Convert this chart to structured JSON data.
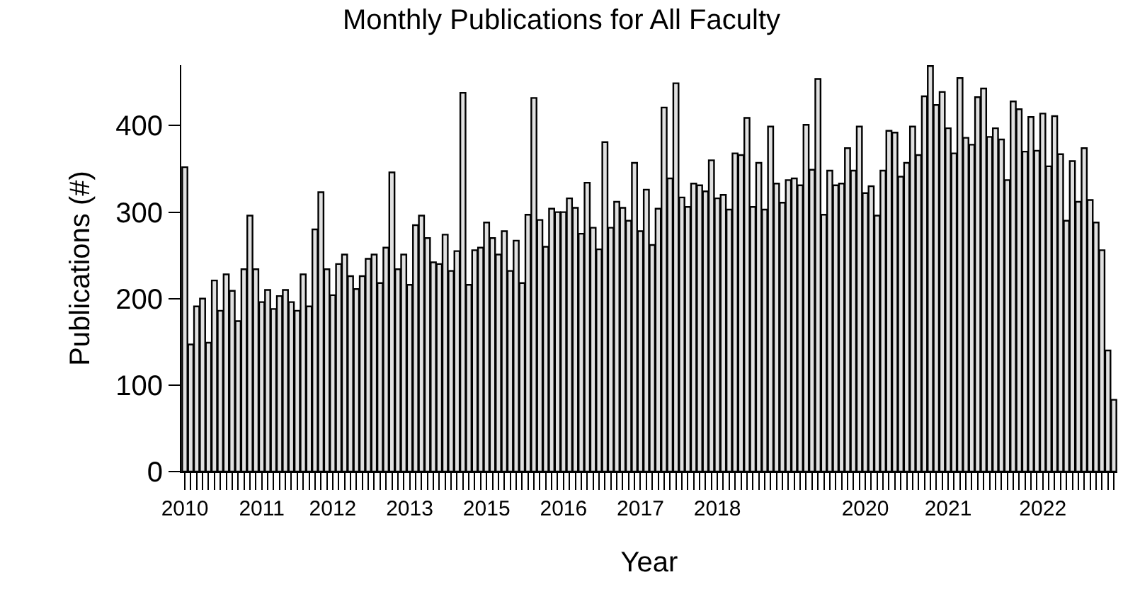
{
  "chart_data": {
    "type": "bar",
    "title": "Monthly Publications for All Faculty",
    "xlabel": "Year",
    "ylabel": "Publications (#)",
    "categories": [
      "2010",
      null,
      null,
      null,
      null,
      null,
      null,
      null,
      null,
      null,
      null,
      null,
      null,
      "2011",
      null,
      null,
      null,
      null,
      null,
      null,
      null,
      null,
      null,
      null,
      null,
      "2012",
      null,
      null,
      null,
      null,
      null,
      null,
      null,
      null,
      null,
      null,
      null,
      null,
      "2013",
      null,
      null,
      null,
      null,
      null,
      null,
      null,
      null,
      null,
      null,
      null,
      null,
      "2015",
      null,
      null,
      null,
      null,
      null,
      null,
      null,
      null,
      null,
      null,
      null,
      null,
      "2016",
      null,
      null,
      null,
      null,
      null,
      null,
      null,
      null,
      null,
      null,
      null,
      null,
      "2017",
      null,
      null,
      null,
      null,
      null,
      null,
      null,
      null,
      null,
      null,
      null,
      null,
      "2018",
      null,
      null,
      null,
      null,
      null,
      null,
      null,
      null,
      null,
      null,
      null,
      null,
      null,
      null,
      null,
      null,
      null,
      null,
      null,
      null,
      null,
      null,
      null,
      null,
      "2020",
      null,
      null,
      null,
      null,
      null,
      null,
      null,
      null,
      null,
      null,
      null,
      null,
      null,
      "2021",
      null,
      null,
      null,
      null,
      null,
      null,
      null,
      null,
      null,
      null,
      null,
      null,
      null,
      null,
      null,
      "2022",
      null,
      null,
      null,
      null,
      null,
      null,
      null,
      null,
      null,
      null,
      null,
      null
    ],
    "values": [
      352,
      147,
      191,
      200,
      149,
      221,
      186,
      228,
      209,
      174,
      234,
      296,
      234,
      196,
      210,
      188,
      203,
      210,
      196,
      186,
      228,
      191,
      280,
      323,
      234,
      204,
      240,
      251,
      226,
      211,
      226,
      246,
      251,
      218,
      259,
      346,
      234,
      251,
      216,
      285,
      296,
      270,
      242,
      240,
      274,
      232,
      255,
      438,
      216,
      256,
      259,
      288,
      270,
      251,
      278,
      232,
      267,
      218,
      297,
      432,
      291,
      260,
      304,
      300,
      300,
      316,
      305,
      275,
      334,
      282,
      257,
      381,
      282,
      312,
      305,
      290,
      357,
      278,
      326,
      262,
      304,
      421,
      339,
      449,
      317,
      306,
      333,
      331,
      324,
      360,
      316,
      320,
      303,
      368,
      366,
      409,
      306,
      357,
      303,
      399,
      333,
      311,
      337,
      339,
      331,
      401,
      349,
      454,
      297,
      348,
      331,
      333,
      374,
      348,
      399,
      322,
      330,
      296,
      348,
      394,
      392,
      341,
      357,
      399,
      366,
      434,
      469,
      424,
      439,
      397,
      368,
      455,
      386,
      378,
      433,
      443,
      387,
      397,
      384,
      337,
      428,
      419,
      370,
      410,
      371,
      414,
      353,
      411,
      367,
      290,
      359,
      312,
      374,
      314,
      288,
      256,
      140,
      83
    ],
    "color": "#e0e0e0",
    "ylim": [
      0,
      470
    ],
    "yticks": [
      0,
      100,
      200,
      300,
      400
    ],
    "grid": false,
    "legend": false
  }
}
